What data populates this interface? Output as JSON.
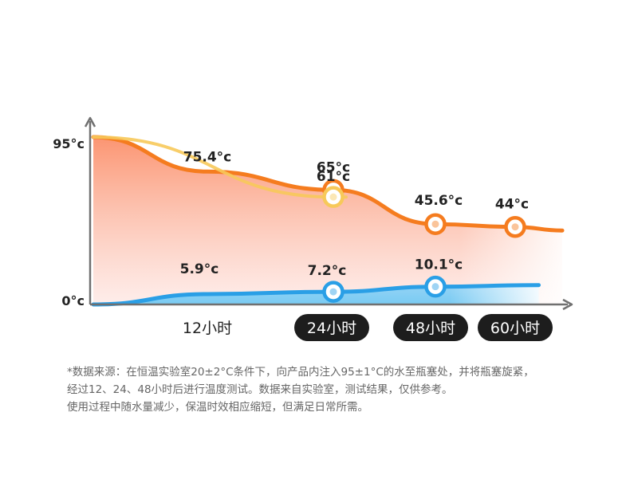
{
  "chart_data": {
    "type": "area",
    "y_ticks": [
      "95°c",
      "0°c"
    ],
    "ylim": [
      0,
      95
    ],
    "categories": [
      "12小时",
      "24小时",
      "48小时",
      "60小时"
    ],
    "highlighted_categories": [
      "24小时",
      "48小时",
      "60小时"
    ],
    "series": [
      {
        "color": "#f57c1f",
        "points": [
          {
            "hours": 0,
            "value": 95
          },
          {
            "hours": 12,
            "value": 75.4,
            "label": "75.4°c"
          },
          {
            "hours": 24,
            "value": 65,
            "label": "65°c",
            "marker": true
          },
          {
            "hours": 48,
            "value": 45.6,
            "label": "45.6°c",
            "marker": true
          },
          {
            "hours": 60,
            "value": 44,
            "label": "44°c",
            "marker": true
          }
        ]
      },
      {
        "color": "#f7c95a",
        "points": [
          {
            "hours": 0,
            "value": 95
          },
          {
            "hours": 24,
            "value": 61,
            "label": "61°c",
            "marker": true
          }
        ]
      },
      {
        "color": "#2a9fe6",
        "points": [
          {
            "hours": 0,
            "value": 0
          },
          {
            "hours": 12,
            "value": 5.9,
            "label": "5.9°c"
          },
          {
            "hours": 24,
            "value": 7.2,
            "label": "7.2°c",
            "marker": true
          },
          {
            "hours": 48,
            "value": 10.1,
            "label": "10.1°c",
            "marker": true
          }
        ]
      }
    ]
  },
  "footnote": {
    "line1": "*数据来源：在恒温实验室20±2°C条件下，向产品内注入95±1°C的水至瓶塞处，并将瓶塞旋紧，",
    "line2": "经过12、24、48小时后进行温度测试。数据来自实验室，测试结果，仅供参考。",
    "line3": "使用过程中随水量减少，保温时效相应缩短，但满足日常所需。"
  }
}
